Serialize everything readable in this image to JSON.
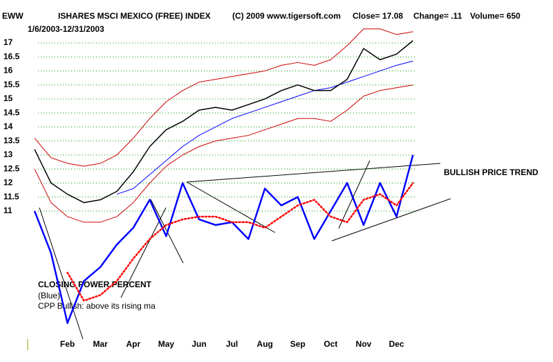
{
  "chart_data": {
    "type": "line",
    "header": [
      "EWW",
      "ISHARES MSCI MEXICO (FREE) INDEX",
      "(C) 2009 www.tigersoft.com",
      "Close=  17.08",
      "Change= .11",
      "Volume= 650"
    ],
    "subtitle": "1/6/2003-12/31/2003",
    "annotations": [
      "BULLISH PRICE TREND",
      "CLOSING POWER PERCENT",
      "(Blue)",
      "CPP Bullish: above its rising ma"
    ],
    "categories": [
      null,
      null,
      "Feb",
      null,
      "Mar",
      null,
      "Apr",
      null,
      "May",
      null,
      "Jun",
      null,
      "Jul",
      null,
      "Aug",
      null,
      "Sep",
      null,
      "Oct",
      null,
      "Nov",
      null,
      "Dec",
      null
    ],
    "ylim": [
      6.5,
      18
    ],
    "yticks": [
      11,
      11.5,
      12,
      12.5,
      13,
      13.5,
      14,
      14.5,
      15,
      15.5,
      16,
      16.5,
      17
    ],
    "grid": true,
    "grid_color": "#009900",
    "series": [
      {
        "name": "upper band",
        "color": "#cc0000",
        "width": 1,
        "values": [
          13.6,
          12.9,
          12.7,
          12.6,
          12.7,
          13.0,
          13.6,
          14.3,
          14.9,
          15.3,
          15.6,
          15.7,
          15.8,
          15.9,
          16.0,
          16.2,
          16.3,
          16.2,
          16.4,
          16.9,
          17.5,
          17.5,
          17.3,
          17.4
        ]
      },
      {
        "name": "lower band",
        "color": "#cc0000",
        "width": 1,
        "values": [
          12.5,
          11.3,
          10.8,
          10.6,
          10.6,
          10.8,
          11.3,
          12.0,
          12.6,
          13.0,
          13.3,
          13.5,
          13.6,
          13.7,
          13.9,
          14.1,
          14.3,
          14.3,
          14.2,
          14.6,
          15.1,
          15.3,
          15.4,
          15.5
        ]
      },
      {
        "name": "moving average",
        "color": "#0000ff",
        "width": 1,
        "values": [
          null,
          null,
          null,
          null,
          null,
          11.6,
          11.8,
          12.3,
          12.8,
          13.3,
          13.7,
          14.0,
          14.3,
          14.5,
          14.7,
          14.9,
          15.1,
          15.3,
          15.4,
          15.6,
          15.8,
          16.0,
          16.2,
          16.35
        ]
      },
      {
        "name": "price",
        "color": "#000000",
        "width": 1.5,
        "values": [
          13.2,
          12.0,
          11.6,
          11.3,
          11.4,
          11.7,
          12.4,
          13.3,
          13.9,
          14.2,
          14.6,
          14.7,
          14.6,
          14.8,
          15.0,
          15.3,
          15.5,
          15.3,
          15.3,
          15.7,
          16.8,
          16.4,
          16.6,
          17.08
        ]
      },
      {
        "name": "CPP",
        "color": "#0000ff",
        "width": 2.5,
        "values": [
          11.0,
          9.5,
          7.0,
          8.5,
          9.0,
          9.8,
          10.4,
          11.4,
          10.1,
          12.0,
          10.7,
          10.5,
          10.6,
          10.0,
          11.8,
          11.2,
          11.5,
          10.0,
          11.0,
          12.0,
          10.5,
          12.0,
          10.8,
          13.0
        ]
      },
      {
        "name": "CPP ma",
        "color": "#ff0000",
        "width": 2.5,
        "style": "dotted",
        "values": [
          null,
          null,
          8.8,
          7.8,
          8.0,
          8.5,
          9.3,
          10.0,
          10.5,
          10.7,
          10.8,
          10.8,
          10.6,
          10.6,
          10.4,
          10.8,
          11.2,
          11.4,
          10.8,
          10.6,
          11.4,
          11.6,
          11.2,
          12.0
        ]
      }
    ]
  }
}
